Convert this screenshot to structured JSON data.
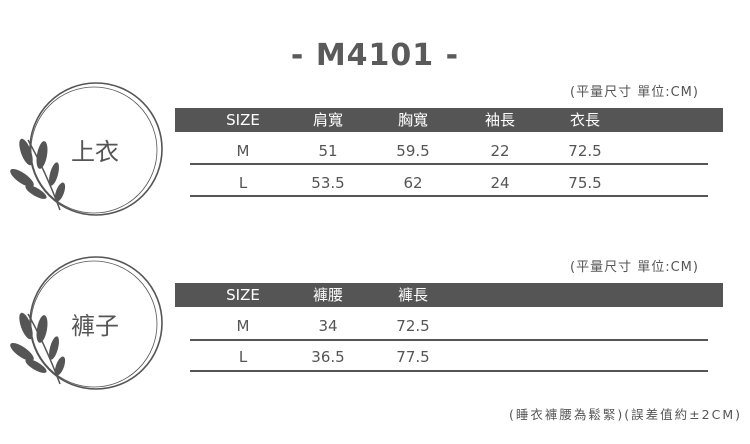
{
  "title": "- M4101 -",
  "tops": {
    "category": "上衣",
    "unit_note": "(平量尺寸 單位:CM)",
    "headers": [
      "SIZE",
      "肩寬",
      "胸寬",
      "袖長",
      "衣長"
    ],
    "rows": [
      [
        "M",
        "51",
        "59.5",
        "22",
        "72.5"
      ],
      [
        "L",
        "53.5",
        "62",
        "24",
        "75.5"
      ]
    ]
  },
  "pants": {
    "category": "褲子",
    "unit_note": "(平量尺寸 單位:CM)",
    "headers": [
      "SIZE",
      "褲腰",
      "褲長"
    ],
    "rows": [
      [
        "M",
        "34",
        "72.5"
      ],
      [
        "L",
        "36.5",
        "77.5"
      ]
    ]
  },
  "footnote": "(睡衣褲腰為鬆緊)(誤差值約±2CM)",
  "colors": {
    "header_bg": "#555555",
    "text": "#555555"
  },
  "icons": [
    "leaf-branch-icon"
  ]
}
